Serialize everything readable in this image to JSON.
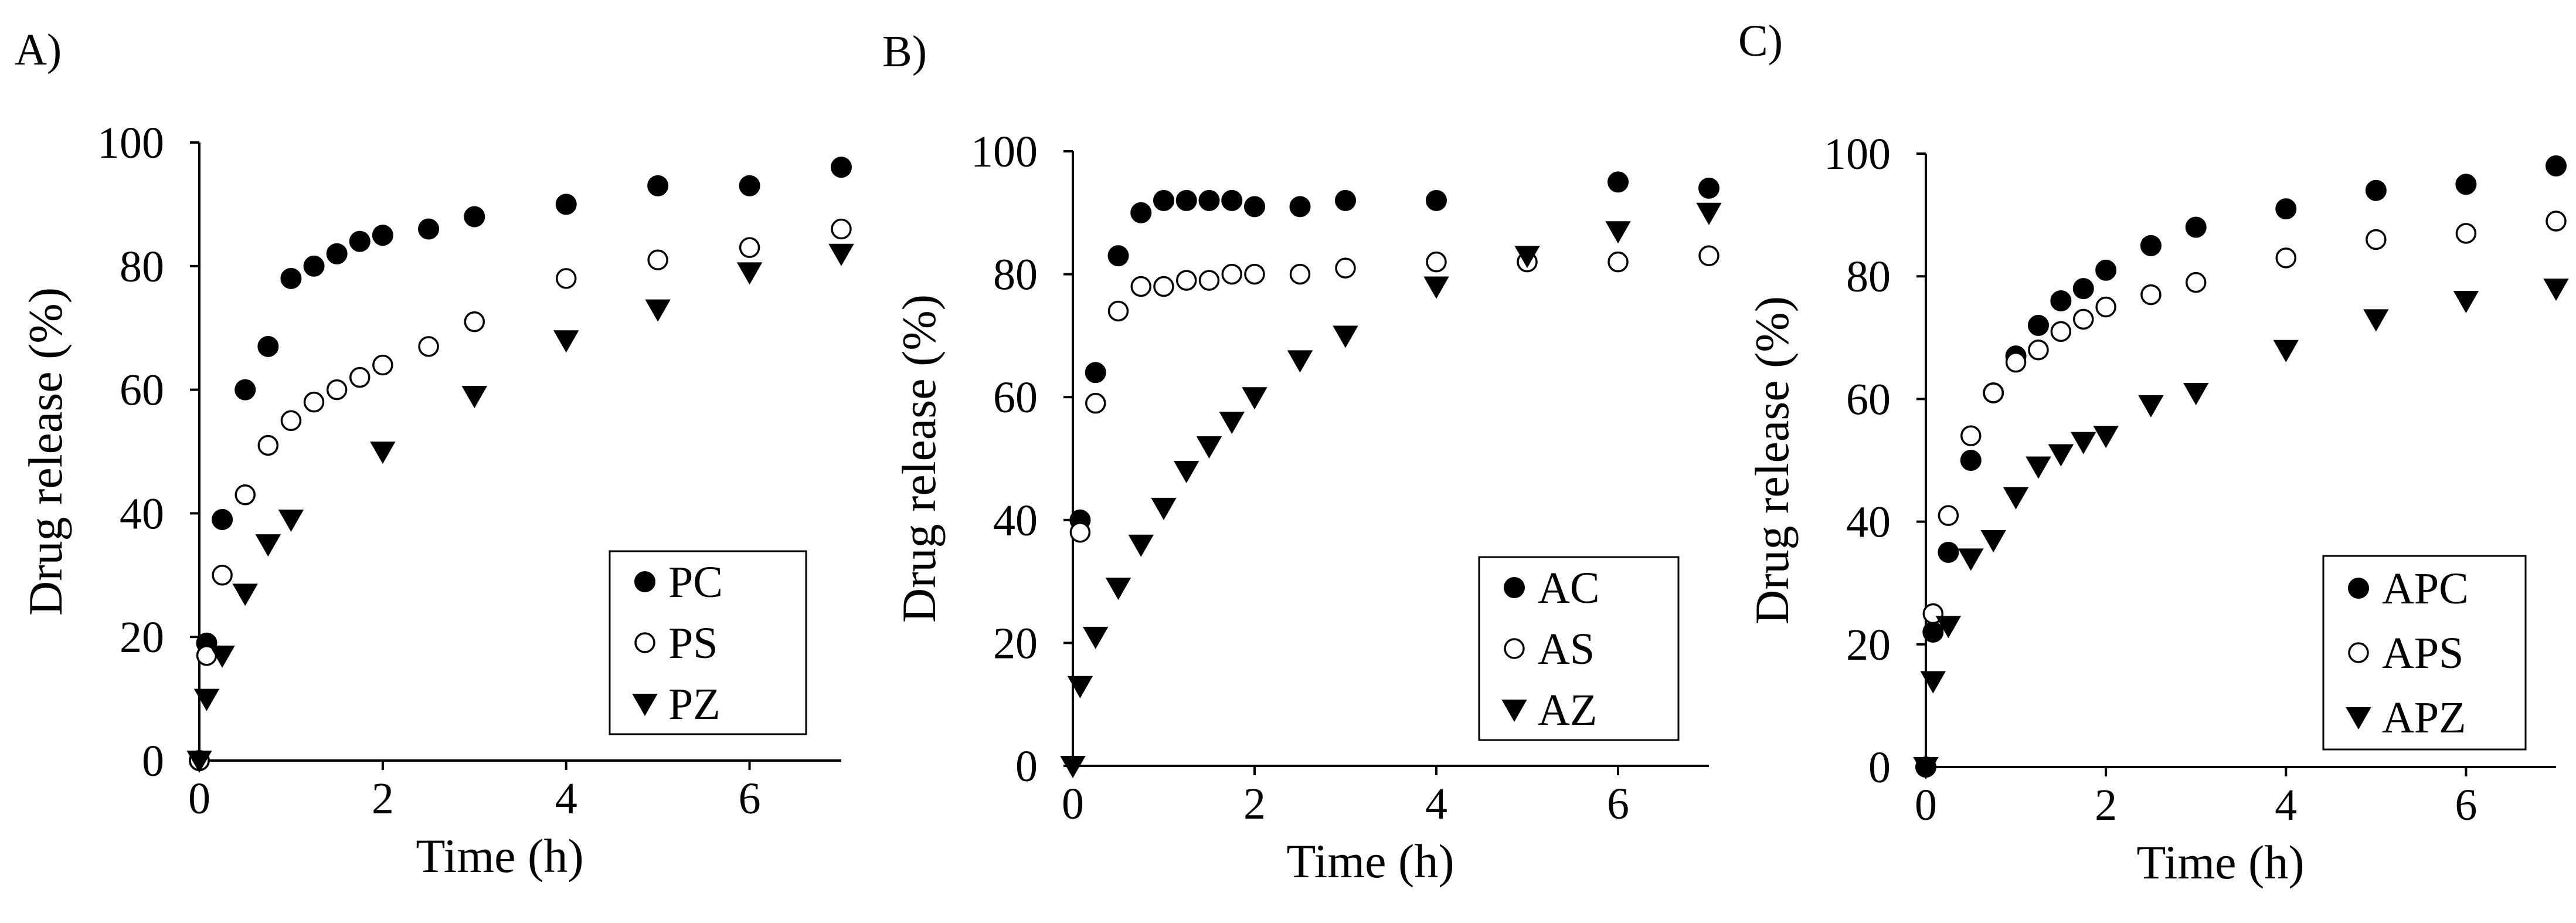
{
  "chart_data": [
    {
      "type": "scatter",
      "panel_label": "A)",
      "xlabel": "Time (h)",
      "ylabel": "Drug release (%)",
      "xlim": [
        0,
        7
      ],
      "ylim": [
        0,
        100
      ],
      "xticks": [
        0,
        2,
        4,
        6
      ],
      "yticks": [
        0,
        20,
        40,
        60,
        80,
        100
      ],
      "legend": "bottom-right",
      "series": [
        {
          "name": "PC",
          "marker": "filled-circle",
          "x": [
            0,
            0.08,
            0.25,
            0.5,
            0.75,
            1,
            1.25,
            1.5,
            1.75,
            2,
            2.5,
            3,
            4,
            5,
            6,
            7
          ],
          "y": [
            0,
            19,
            39,
            60,
            67,
            78,
            80,
            82,
            84,
            85,
            86,
            88,
            90,
            93,
            93,
            96
          ]
        },
        {
          "name": "PS",
          "marker": "open-circle",
          "x": [
            0,
            0.08,
            0.25,
            0.5,
            0.75,
            1,
            1.25,
            1.5,
            1.75,
            2,
            2.5,
            3,
            4,
            5,
            6,
            7
          ],
          "y": [
            0,
            17,
            30,
            43,
            51,
            55,
            58,
            60,
            62,
            64,
            67,
            71,
            78,
            81,
            83,
            86
          ]
        },
        {
          "name": "PZ",
          "marker": "filled-triangle-down",
          "x": [
            0,
            0.08,
            0.25,
            0.5,
            0.75,
            1,
            2,
            3,
            4,
            5,
            6,
            7
          ],
          "y": [
            0,
            10,
            17,
            27,
            35,
            39,
            50,
            59,
            68,
            73,
            79,
            82
          ]
        }
      ]
    },
    {
      "type": "scatter",
      "panel_label": "B)",
      "xlabel": "Time (h)",
      "ylabel": "Drug release (%)",
      "xlim": [
        0,
        7
      ],
      "ylim": [
        0,
        100
      ],
      "xticks": [
        0,
        2,
        4,
        6
      ],
      "yticks": [
        0,
        20,
        40,
        60,
        80,
        100
      ],
      "legend": "bottom-right",
      "series": [
        {
          "name": "AC",
          "marker": "filled-circle",
          "x": [
            0.08,
            0.25,
            0.5,
            0.75,
            1,
            1.25,
            1.5,
            1.75,
            2,
            2.5,
            3,
            4,
            6,
            7
          ],
          "y": [
            40,
            64,
            83,
            90,
            92,
            92,
            92,
            92,
            91,
            91,
            92,
            92,
            95,
            94
          ]
        },
        {
          "name": "AS",
          "marker": "open-circle",
          "x": [
            0.08,
            0.25,
            0.5,
            0.75,
            1,
            1.25,
            1.5,
            1.75,
            2,
            2.5,
            3,
            4,
            5,
            6,
            7
          ],
          "y": [
            38,
            59,
            74,
            78,
            78,
            79,
            79,
            80,
            80,
            80,
            81,
            82,
            82,
            82,
            83
          ]
        },
        {
          "name": "AZ",
          "marker": "filled-triangle-down",
          "x": [
            0,
            0.08,
            0.25,
            0.5,
            0.75,
            1,
            1.25,
            1.5,
            1.75,
            2,
            2.5,
            3,
            4,
            5,
            6,
            7
          ],
          "y": [
            0,
            13,
            21,
            29,
            36,
            42,
            48,
            52,
            56,
            60,
            66,
            70,
            78,
            83,
            87,
            90
          ]
        }
      ]
    },
    {
      "type": "scatter",
      "panel_label": "C)",
      "xlabel": "Time (h)",
      "ylabel": "Drug release (%)",
      "xlim": [
        0,
        7
      ],
      "ylim": [
        0,
        100
      ],
      "xticks": [
        0,
        2,
        4,
        6
      ],
      "yticks": [
        0,
        20,
        40,
        60,
        80,
        100
      ],
      "legend": "bottom-right",
      "series": [
        {
          "name": "APC",
          "marker": "filled-circle",
          "x": [
            0,
            0.08,
            0.25,
            0.5,
            0.75,
            1,
            1.25,
            1.5,
            1.75,
            2,
            2.5,
            3,
            4,
            5,
            6,
            7
          ],
          "y": [
            0,
            22,
            35,
            50,
            61,
            67,
            72,
            76,
            78,
            81,
            85,
            88,
            91,
            94,
            95,
            98
          ]
        },
        {
          "name": "APS",
          "marker": "open-circle",
          "x": [
            0.08,
            0.25,
            0.5,
            0.75,
            1,
            1.25,
            1.5,
            1.75,
            2,
            2.5,
            3,
            4,
            5,
            6,
            7
          ],
          "y": [
            25,
            41,
            54,
            61,
            66,
            68,
            71,
            73,
            75,
            77,
            79,
            83,
            86,
            87,
            89
          ]
        },
        {
          "name": "APZ",
          "marker": "filled-triangle-down",
          "x": [
            0,
            0.08,
            0.25,
            0.5,
            0.75,
            1,
            1.25,
            1.5,
            1.75,
            2,
            2.5,
            3,
            4,
            5,
            6,
            7
          ],
          "y": [
            0,
            14,
            23,
            34,
            37,
            44,
            49,
            51,
            53,
            54,
            59,
            61,
            68,
            73,
            76,
            78
          ]
        }
      ]
    }
  ]
}
